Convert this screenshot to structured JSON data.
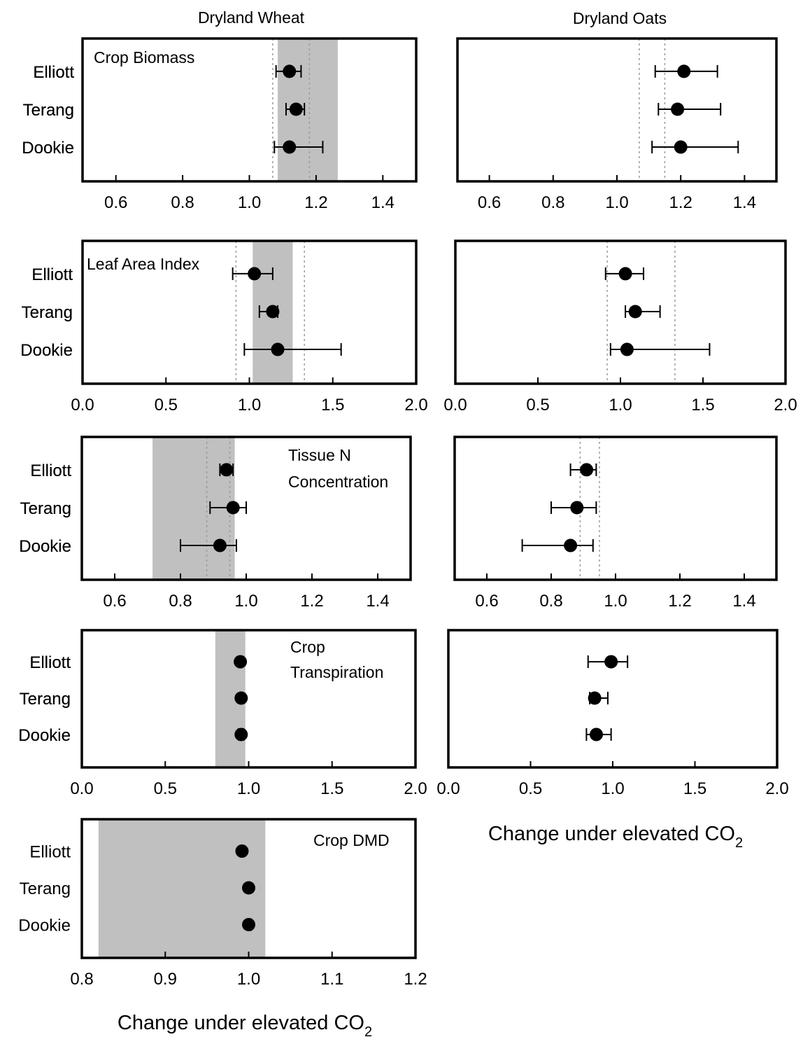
{
  "columns": [
    {
      "title": "Dryland Wheat"
    },
    {
      "title": "Dryland Oats"
    }
  ],
  "xlabel": {
    "main": "Change under elevated CO",
    "sub": "2"
  },
  "colors": {
    "shade": "#c0c0c0",
    "marker": "#000000",
    "dotted_line": "#9a9a9a"
  },
  "chart_data": [
    {
      "type": "scatter",
      "column": "Dryland Wheat",
      "label": [
        "Crop Biomass"
      ],
      "categories": [
        "Elliott",
        "Terang",
        "Dookie"
      ],
      "xlim": [
        0.5,
        1.5
      ],
      "xticks": [
        0.6,
        0.8,
        1.0,
        1.2,
        1.4
      ],
      "xtick_labels": [
        "0.6",
        "0.8",
        "1.0",
        "1.2",
        "1.4"
      ],
      "points": [
        {
          "site": "Elliott",
          "value": 1.12,
          "lo": 1.08,
          "hi": 1.155
        },
        {
          "site": "Terang",
          "value": 1.14,
          "lo": 1.11,
          "hi": 1.165
        },
        {
          "site": "Dookie",
          "value": 1.12,
          "lo": 1.075,
          "hi": 1.22
        }
      ],
      "shade": [
        1.085,
        1.265
      ],
      "dotted": [
        1.07,
        1.18
      ]
    },
    {
      "type": "scatter",
      "column": "Dryland Oats",
      "label": [],
      "categories": [
        "Elliott",
        "Terang",
        "Dookie"
      ],
      "xlim": [
        0.5,
        1.5
      ],
      "xticks": [
        0.6,
        0.8,
        1.0,
        1.2,
        1.4
      ],
      "xtick_labels": [
        "0.6",
        "0.8",
        "1.0",
        "1.2",
        "1.4"
      ],
      "points": [
        {
          "site": "Elliott",
          "value": 1.21,
          "lo": 1.12,
          "hi": 1.315
        },
        {
          "site": "Terang",
          "value": 1.19,
          "lo": 1.13,
          "hi": 1.325
        },
        {
          "site": "Dookie",
          "value": 1.2,
          "lo": 1.11,
          "hi": 1.38
        }
      ],
      "shade": null,
      "dotted": [
        1.07,
        1.15
      ]
    },
    {
      "type": "scatter",
      "column": "Dryland Wheat",
      "label": [
        "Leaf Area Index"
      ],
      "categories": [
        "Elliott",
        "Terang",
        "Dookie"
      ],
      "xlim": [
        0,
        2
      ],
      "xticks": [
        0,
        0.5,
        1,
        1.5,
        2
      ],
      "xtick_labels": [
        "0.0",
        "0.5",
        "1.0",
        "1.5",
        "2.0"
      ],
      "points": [
        {
          "site": "Elliott",
          "value": 1.03,
          "lo": 0.9,
          "hi": 1.14
        },
        {
          "site": "Terang",
          "value": 1.14,
          "lo": 1.06,
          "hi": 1.17
        },
        {
          "site": "Dookie",
          "value": 1.17,
          "lo": 0.97,
          "hi": 1.55
        }
      ],
      "shade": [
        1.02,
        1.26
      ],
      "dotted": [
        0.92,
        1.33
      ]
    },
    {
      "type": "scatter",
      "column": "Dryland Oats",
      "label": [],
      "categories": [
        "Elliott",
        "Terang",
        "Dookie"
      ],
      "xlim": [
        0,
        2
      ],
      "xticks": [
        0,
        0.5,
        1,
        1.5,
        2
      ],
      "xtick_labels": [
        "0.0",
        "0.5",
        "1.0",
        "1.5",
        "2.0"
      ],
      "points": [
        {
          "site": "Elliott",
          "value": 1.03,
          "lo": 0.91,
          "hi": 1.14
        },
        {
          "site": "Terang",
          "value": 1.09,
          "lo": 1.03,
          "hi": 1.24
        },
        {
          "site": "Dookie",
          "value": 1.04,
          "lo": 0.94,
          "hi": 1.54
        }
      ],
      "shade": null,
      "dotted": [
        0.92,
        1.33
      ]
    },
    {
      "type": "scatter",
      "column": "Dryland Wheat",
      "label": [
        "Tissue N",
        "Concentration"
      ],
      "categories": [
        "Elliott",
        "Terang",
        "Dookie"
      ],
      "xlim": [
        0.5,
        1.5
      ],
      "xticks": [
        0.6,
        0.8,
        1.0,
        1.2,
        1.4
      ],
      "xtick_labels": [
        "0.6",
        "0.8",
        "1.0",
        "1.2",
        "1.4"
      ],
      "points": [
        {
          "site": "Elliott",
          "value": 0.94,
          "lo": 0.92,
          "hi": 0.96
        },
        {
          "site": "Terang",
          "value": 0.96,
          "lo": 0.89,
          "hi": 1.0
        },
        {
          "site": "Dookie",
          "value": 0.92,
          "lo": 0.8,
          "hi": 0.97
        }
      ],
      "shade": [
        0.715,
        0.965
      ],
      "dotted": [
        0.88,
        0.95
      ]
    },
    {
      "type": "scatter",
      "column": "Dryland Oats",
      "label": [],
      "categories": [
        "Elliott",
        "Terang",
        "Dookie"
      ],
      "xlim": [
        0.5,
        1.5
      ],
      "xticks": [
        0.6,
        0.8,
        1.0,
        1.2,
        1.4
      ],
      "xtick_labels": [
        "0.6",
        "0.8",
        "1.0",
        "1.2",
        "1.4"
      ],
      "points": [
        {
          "site": "Elliott",
          "value": 0.91,
          "lo": 0.86,
          "hi": 0.94
        },
        {
          "site": "Terang",
          "value": 0.88,
          "lo": 0.8,
          "hi": 0.94
        },
        {
          "site": "Dookie",
          "value": 0.86,
          "lo": 0.71,
          "hi": 0.93
        }
      ],
      "shade": null,
      "dotted": [
        0.89,
        0.95
      ]
    },
    {
      "type": "scatter",
      "column": "Dryland Wheat",
      "label": [
        "Crop",
        "Transpiration"
      ],
      "categories": [
        "Elliott",
        "Terang",
        "Dookie"
      ],
      "xlim": [
        0,
        2
      ],
      "xticks": [
        0,
        0.5,
        1,
        1.5,
        2
      ],
      "xtick_labels": [
        "0.0",
        "0.5",
        "1.0",
        "1.5",
        "2.0"
      ],
      "points": [
        {
          "site": "Elliott",
          "value": 0.95,
          "lo": 0.94,
          "hi": 0.96
        },
        {
          "site": "Terang",
          "value": 0.955,
          "lo": 0.945,
          "hi": 0.965
        },
        {
          "site": "Dookie",
          "value": 0.955,
          "lo": 0.94,
          "hi": 0.97
        }
      ],
      "shade": [
        0.8,
        0.98
      ],
      "dotted": null
    },
    {
      "type": "scatter",
      "column": "Dryland Oats",
      "label": [],
      "categories": [
        "Elliott",
        "Terang",
        "Dookie"
      ],
      "xlim": [
        0,
        2
      ],
      "xticks": [
        0,
        0.5,
        1,
        1.5,
        2
      ],
      "xtick_labels": [
        "0.0",
        "0.5",
        "1.0",
        "1.5",
        "2.0"
      ],
      "points": [
        {
          "site": "Elliott",
          "value": 0.99,
          "lo": 0.85,
          "hi": 1.09
        },
        {
          "site": "Terang",
          "value": 0.89,
          "lo": 0.86,
          "hi": 0.97
        },
        {
          "site": "Dookie",
          "value": 0.9,
          "lo": 0.84,
          "hi": 0.99
        }
      ],
      "shade": null,
      "dotted": null
    },
    {
      "type": "scatter",
      "column": "Dryland Wheat",
      "label": [
        "Crop DMD"
      ],
      "categories": [
        "Elliott",
        "Terang",
        "Dookie"
      ],
      "xlim": [
        0.8,
        1.2
      ],
      "xticks": [
        0.8,
        0.9,
        1.0,
        1.1,
        1.2
      ],
      "xtick_labels": [
        "0.8",
        "0.9",
        "1.0",
        "1.1",
        "1.2"
      ],
      "points": [
        {
          "site": "Elliott",
          "value": 0.992,
          "lo": 0.99,
          "hi": 0.994
        },
        {
          "site": "Terang",
          "value": 1.0,
          "lo": 0.998,
          "hi": 1.002
        },
        {
          "site": "Dookie",
          "value": 1.0,
          "lo": 0.998,
          "hi": 1.003
        }
      ],
      "shade": [
        0.82,
        1.02
      ],
      "dotted": null
    }
  ]
}
